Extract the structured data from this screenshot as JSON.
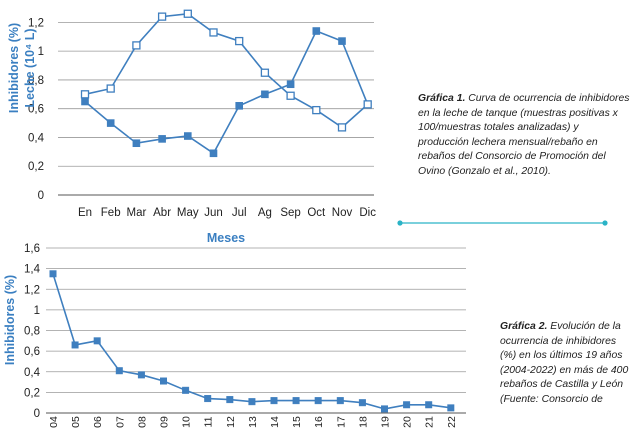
{
  "chart_data": [
    {
      "type": "line",
      "ylabel": "Inhibidores (%)",
      "ylabel2": "Leche (10⁴ L)",
      "xlabel": "Meses",
      "categories": [
        "En",
        "Feb",
        "Mar",
        "Abr",
        "May",
        "Jun",
        "Jul",
        "Ag",
        "Sep",
        "Oct",
        "Nov",
        "Dic"
      ],
      "ylim": [
        0,
        1.3
      ],
      "yticks": [
        "0",
        "0,2",
        "0,4",
        "0,6",
        "0,8",
        "1",
        "1,2"
      ],
      "grid": true,
      "series": [
        {
          "marker": "filled-square",
          "values": [
            0.65,
            0.5,
            0.36,
            0.39,
            0.41,
            0.29,
            0.62,
            0.7,
            0.77,
            1.14,
            1.07,
            0.63
          ]
        },
        {
          "marker": "hollow-square",
          "values": [
            0.7,
            0.74,
            1.04,
            1.24,
            1.26,
            1.13,
            1.07,
            0.85,
            0.69,
            0.59,
            0.47,
            0.63
          ]
        }
      ],
      "caption_title": "Gráfica 1.",
      "caption_text": "Curva de ocurrencia de inhibidores en la leche de tanque (muestras positivas x 100/muestras totales analizadas) y producción lechera mensual/rebaño en rebaños del Consorcio de Promoción del Ovino (Gonzalo et al., 2010)."
    },
    {
      "type": "line",
      "ylabel": "Inhibidores (%)",
      "categories": [
        "04",
        "05",
        "06",
        "07",
        "08",
        "09",
        "10",
        "11",
        "12",
        "13",
        "14",
        "15",
        "16",
        "17",
        "18",
        "19",
        "20",
        "21",
        "22"
      ],
      "ylim": [
        0,
        1.6
      ],
      "yticks": [
        "0",
        "0,2",
        "0,4",
        "0,6",
        "0,8",
        "1",
        "1,2",
        "1,4",
        "1,6"
      ],
      "grid": true,
      "series": [
        {
          "marker": "filled-square",
          "values": [
            1.35,
            0.66,
            0.7,
            0.41,
            0.37,
            0.31,
            0.22,
            0.14,
            0.13,
            0.11,
            0.12,
            0.12,
            0.12,
            0.12,
            0.1,
            0.04,
            0.08,
            0.08,
            0.05
          ]
        }
      ],
      "caption_title": "Gráfica 2.",
      "caption_text": "Evolución de la ocurrencia de inhibidores (%) en los últimos 19 años (2004-2022) en más de 400 rebaños de Castilla y León (Fuente: Consorcio de"
    }
  ],
  "colors": {
    "series": "#3f7fbf",
    "axis_label": "#3a7fc1",
    "grid": "#9a9a9a",
    "divider": "#2ab3c6",
    "text": "#222222"
  }
}
